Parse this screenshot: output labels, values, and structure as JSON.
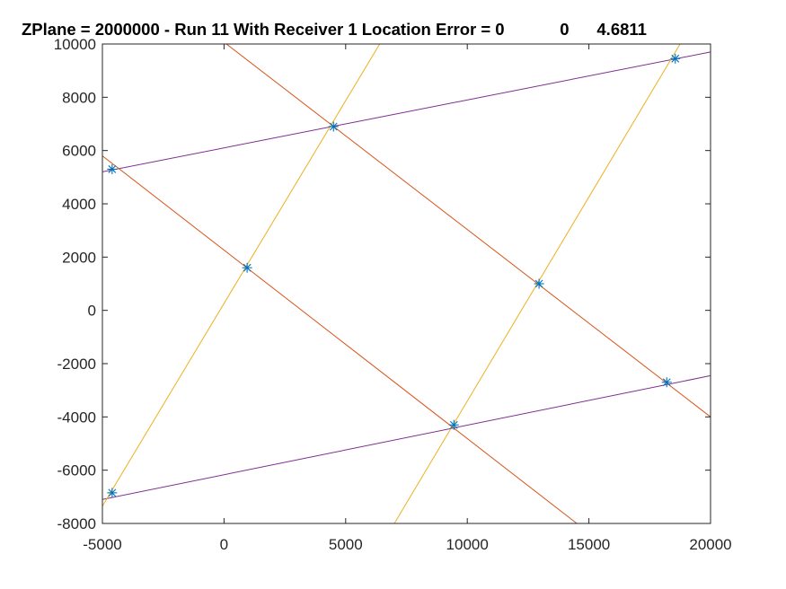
{
  "chart_data": {
    "type": "line",
    "title": "ZPlane = 2000000 - Run 11 With Receiver 1 Location Error = 0            0      4.6811",
    "xlabel": "",
    "ylabel": "",
    "xlim": [
      -5000,
      20000
    ],
    "ylim": [
      -8000,
      10000
    ],
    "xticks": [
      "-5000",
      "0",
      "5000",
      "10000",
      "15000",
      "20000"
    ],
    "yticks": [
      "10000",
      "8000",
      "6000",
      "4000",
      "2000",
      "0",
      "-2000",
      "-4000",
      "-6000",
      "-8000"
    ],
    "grid": false,
    "series": [
      {
        "color": "#7E2F8E",
        "x": [
          -5000,
          20000
        ],
        "y": [
          5200,
          9700
        ]
      },
      {
        "color": "#7E2F8E",
        "x": [
          -5000,
          20000
        ],
        "y": [
          -7100,
          -2450
        ]
      },
      {
        "color": "#D95319",
        "x": [
          -5000,
          14500
        ],
        "y": [
          5800,
          -8000
        ]
      },
      {
        "color": "#D95319",
        "x": [
          100,
          20000
        ],
        "y": [
          10000,
          -4000
        ]
      },
      {
        "color": "#EDB120",
        "x": [
          -5000,
          6400
        ],
        "y": [
          -7350,
          10000
        ]
      },
      {
        "color": "#EDB120",
        "x": [
          7000,
          18750
        ],
        "y": [
          -8000,
          10000
        ]
      }
    ],
    "markers": {
      "color": "#0072BD",
      "symbol": "asterisk",
      "points": [
        {
          "x": -4600,
          "y": 5300
        },
        {
          "x": 4500,
          "y": 6900
        },
        {
          "x": 18550,
          "y": 9450
        },
        {
          "x": 950,
          "y": 1600
        },
        {
          "x": 12950,
          "y": 1000
        },
        {
          "x": 9450,
          "y": -4300
        },
        {
          "x": 18200,
          "y": -2700
        },
        {
          "x": -4600,
          "y": -6850
        }
      ]
    }
  }
}
